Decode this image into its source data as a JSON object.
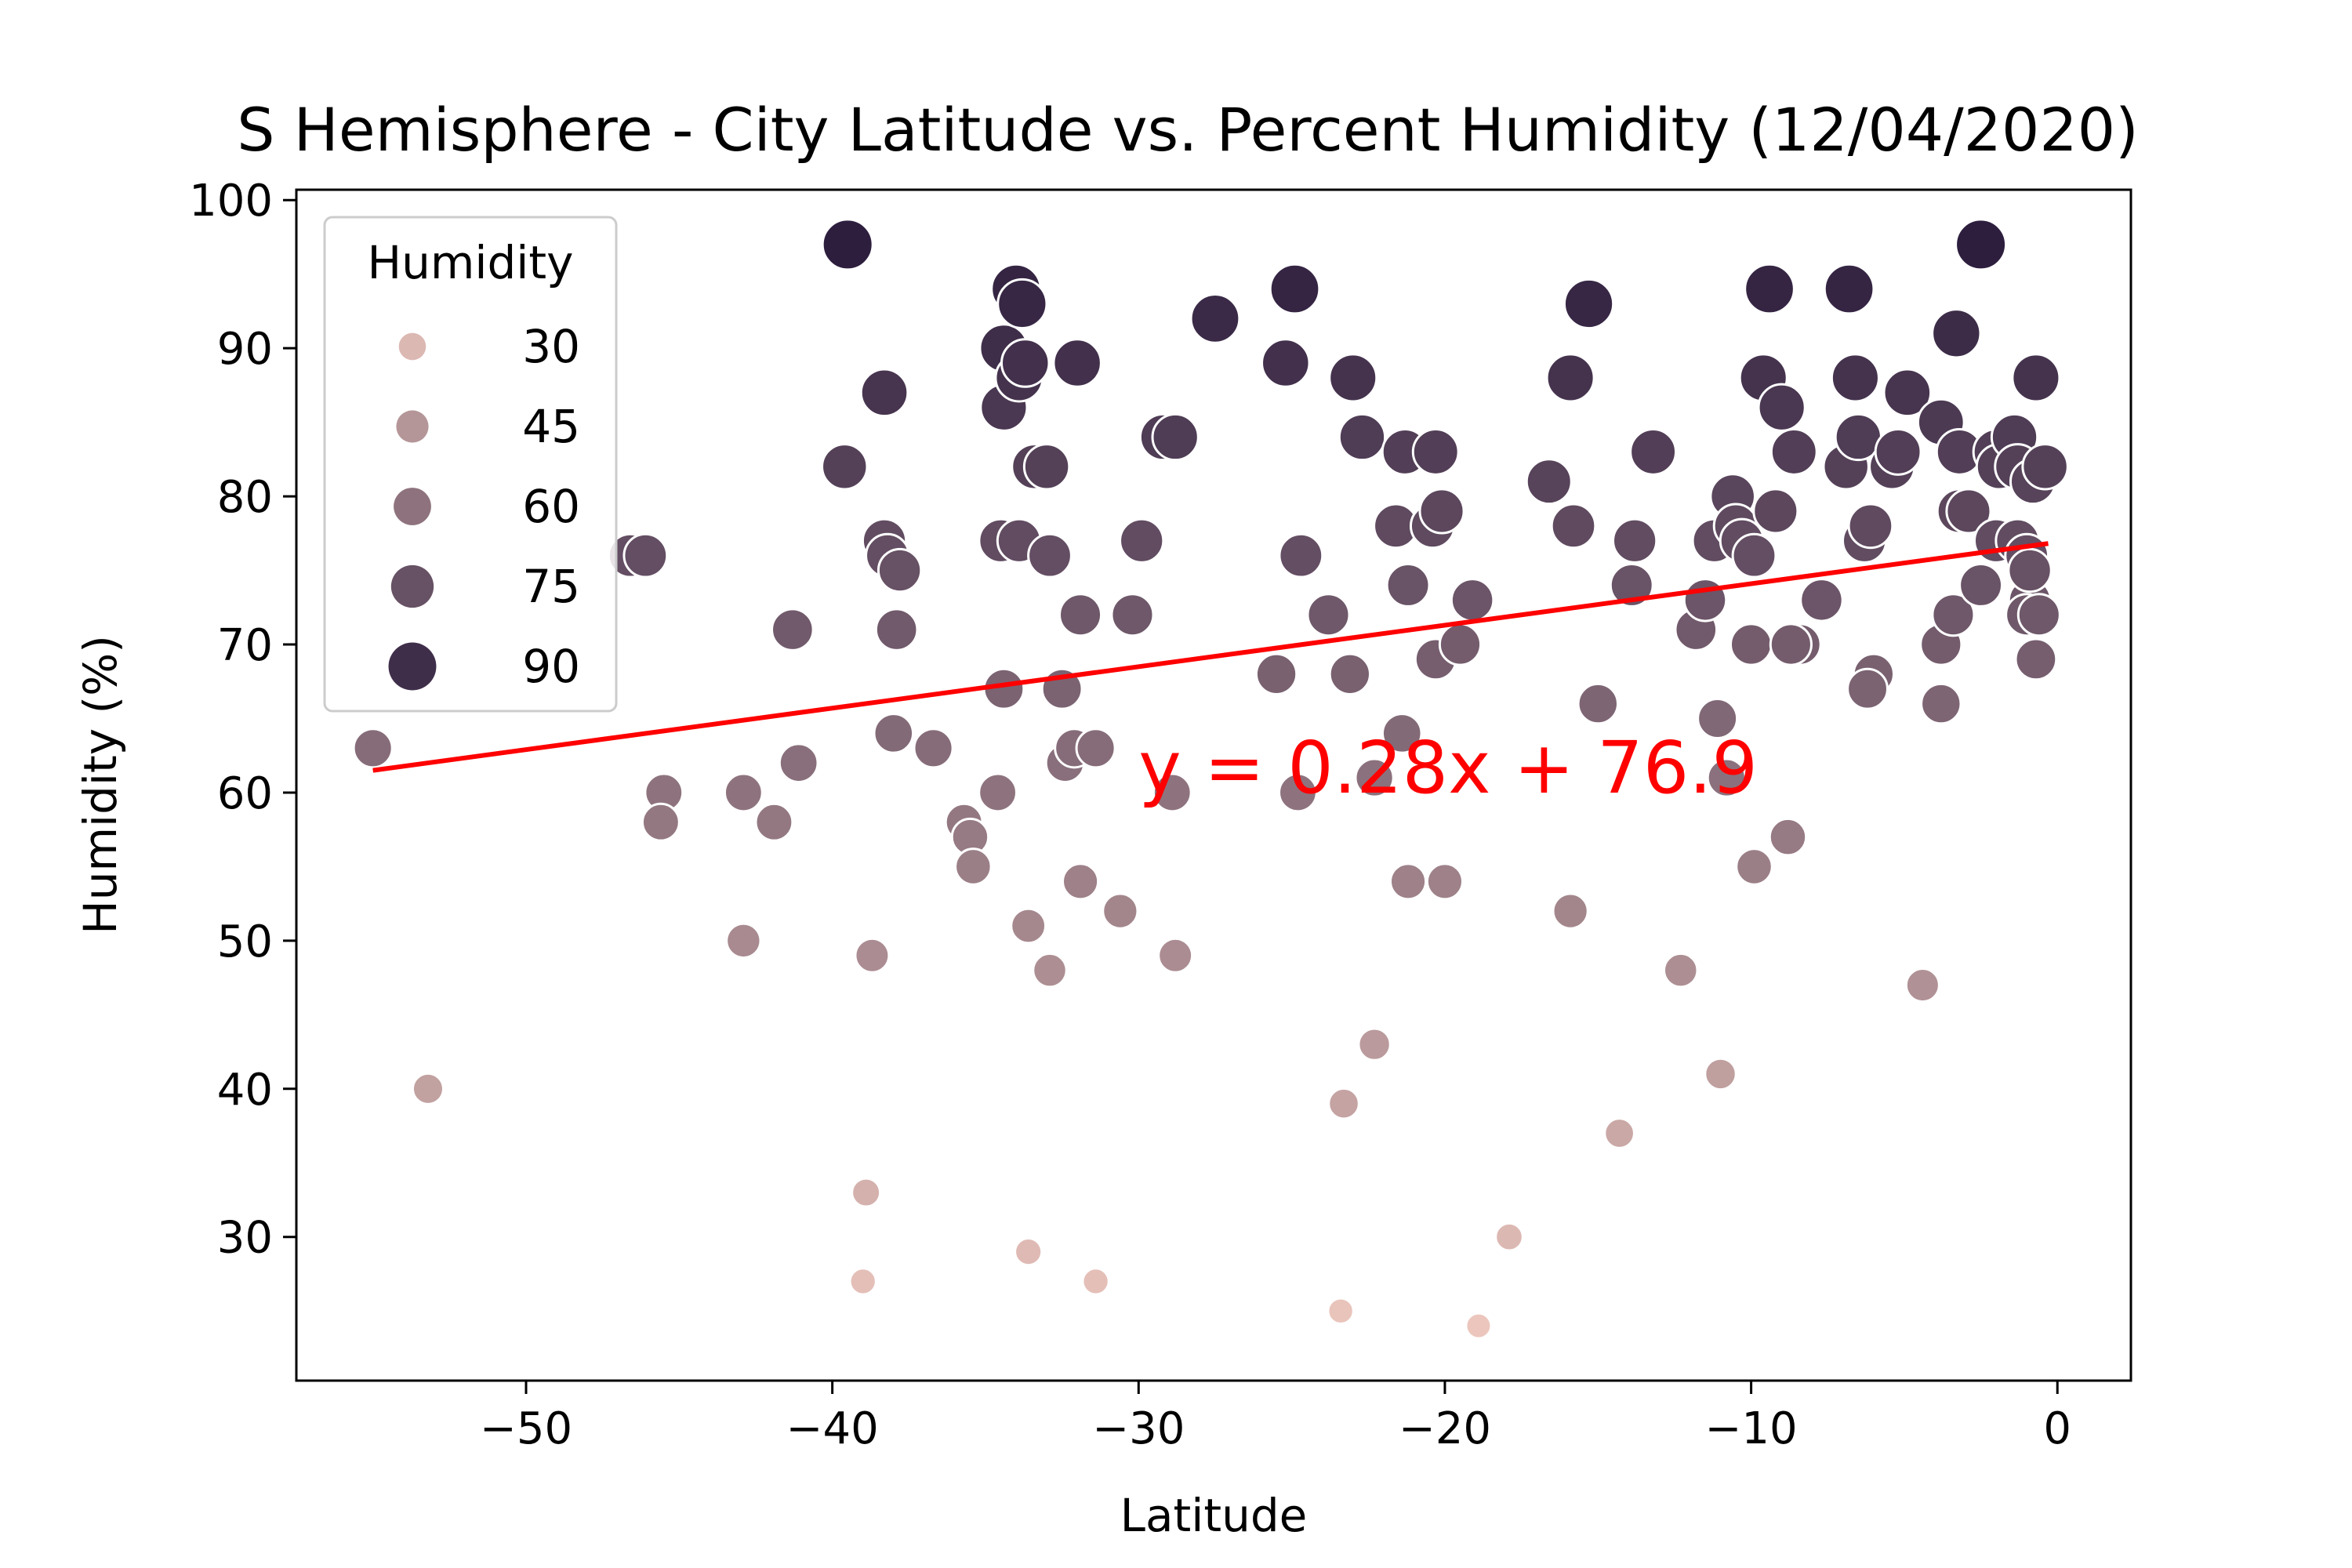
{
  "chart_data": {
    "type": "scatter",
    "title": "S Hemisphere - City Latitude vs. Percent Humidity (12/04/2020)",
    "xlabel": "Latitude",
    "ylabel": "Humidity (%)",
    "xlim": [
      -57.5,
      2.4
    ],
    "ylim": [
      20.3,
      100.7
    ],
    "xticks": [
      -50,
      -40,
      -30,
      -20,
      -10,
      0
    ],
    "yticks": [
      30,
      40,
      50,
      60,
      70,
      80,
      90,
      100
    ],
    "xtick_labels": [
      "−50",
      "−40",
      "−30",
      "−20",
      "−10",
      "0"
    ],
    "ytick_labels": [
      "30",
      "40",
      "50",
      "60",
      "70",
      "80",
      "90",
      "100"
    ],
    "grid": false,
    "hue_range": [
      24,
      97
    ],
    "color_low": "#ecc6bd",
    "color_high": "#2d1e3e",
    "legend": {
      "title": "Humidity",
      "position": "upper-left",
      "entries": [
        "30",
        "45",
        "60",
        "75",
        "90"
      ],
      "values": [
        30,
        45,
        60,
        75,
        90
      ]
    },
    "regression": {
      "slope": 0.28,
      "intercept": 76.9,
      "x_range": [
        -55,
        -0.3
      ],
      "color": "#ff0000",
      "equation": "y = 0.28x + 76.9",
      "equation_x": -30,
      "equation_y": 60
    },
    "points": [
      {
        "x": -55.0,
        "y": 63
      },
      {
        "x": -53.2,
        "y": 40
      },
      {
        "x": -46.6,
        "y": 76
      },
      {
        "x": -46.1,
        "y": 76
      },
      {
        "x": -45.5,
        "y": 60
      },
      {
        "x": -45.6,
        "y": 58
      },
      {
        "x": -42.9,
        "y": 60
      },
      {
        "x": -42.9,
        "y": 50
      },
      {
        "x": -41.9,
        "y": 58
      },
      {
        "x": -41.3,
        "y": 71
      },
      {
        "x": -41.1,
        "y": 62
      },
      {
        "x": -39.5,
        "y": 97
      },
      {
        "x": -39.6,
        "y": 82
      },
      {
        "x": -39.0,
        "y": 27
      },
      {
        "x": -38.9,
        "y": 33
      },
      {
        "x": -38.7,
        "y": 49
      },
      {
        "x": -38.3,
        "y": 87
      },
      {
        "x": -38.3,
        "y": 77
      },
      {
        "x": -38.2,
        "y": 76
      },
      {
        "x": -37.9,
        "y": 71
      },
      {
        "x": -37.8,
        "y": 75
      },
      {
        "x": -38.0,
        "y": 64
      },
      {
        "x": -36.7,
        "y": 63
      },
      {
        "x": -35.7,
        "y": 58
      },
      {
        "x": -35.5,
        "y": 57
      },
      {
        "x": -35.4,
        "y": 55
      },
      {
        "x": -34.6,
        "y": 60
      },
      {
        "x": -34.4,
        "y": 67
      },
      {
        "x": -34.5,
        "y": 77
      },
      {
        "x": -34.4,
        "y": 90
      },
      {
        "x": -34.4,
        "y": 86
      },
      {
        "x": -34.0,
        "y": 94
      },
      {
        "x": -33.8,
        "y": 93
      },
      {
        "x": -33.9,
        "y": 88
      },
      {
        "x": -33.7,
        "y": 89
      },
      {
        "x": -33.9,
        "y": 77
      },
      {
        "x": -33.6,
        "y": 29
      },
      {
        "x": -33.6,
        "y": 51
      },
      {
        "x": -33.4,
        "y": 82
      },
      {
        "x": -33.0,
        "y": 82
      },
      {
        "x": -32.9,
        "y": 76
      },
      {
        "x": -32.9,
        "y": 48
      },
      {
        "x": -32.5,
        "y": 67
      },
      {
        "x": -32.4,
        "y": 62
      },
      {
        "x": -32.1,
        "y": 63
      },
      {
        "x": -32.0,
        "y": 89
      },
      {
        "x": -31.9,
        "y": 72
      },
      {
        "x": -31.9,
        "y": 54
      },
      {
        "x": -31.4,
        "y": 63
      },
      {
        "x": -31.4,
        "y": 27
      },
      {
        "x": -30.6,
        "y": 52
      },
      {
        "x": -30.2,
        "y": 72
      },
      {
        "x": -29.9,
        "y": 77
      },
      {
        "x": -29.2,
        "y": 84
      },
      {
        "x": -28.8,
        "y": 84
      },
      {
        "x": -28.9,
        "y": 60
      },
      {
        "x": -28.8,
        "y": 49
      },
      {
        "x": -27.5,
        "y": 92
      },
      {
        "x": -25.5,
        "y": 68
      },
      {
        "x": -25.2,
        "y": 89
      },
      {
        "x": -24.9,
        "y": 94
      },
      {
        "x": -24.8,
        "y": 60
      },
      {
        "x": -24.7,
        "y": 76
      },
      {
        "x": -23.8,
        "y": 72
      },
      {
        "x": -23.4,
        "y": 25
      },
      {
        "x": -23.3,
        "y": 39
      },
      {
        "x": -23.1,
        "y": 68
      },
      {
        "x": -23.0,
        "y": 88
      },
      {
        "x": -22.7,
        "y": 84
      },
      {
        "x": -22.3,
        "y": 61
      },
      {
        "x": -22.3,
        "y": 43
      },
      {
        "x": -21.4,
        "y": 64
      },
      {
        "x": -21.3,
        "y": 83
      },
      {
        "x": -21.2,
        "y": 74
      },
      {
        "x": -21.2,
        "y": 54
      },
      {
        "x": -21.6,
        "y": 78
      },
      {
        "x": -20.4,
        "y": 78
      },
      {
        "x": -20.3,
        "y": 83
      },
      {
        "x": -20.1,
        "y": 79
      },
      {
        "x": -20.3,
        "y": 69
      },
      {
        "x": -20.0,
        "y": 54
      },
      {
        "x": -19.5,
        "y": 70
      },
      {
        "x": -19.1,
        "y": 73
      },
      {
        "x": -18.9,
        "y": 24
      },
      {
        "x": -17.9,
        "y": 30
      },
      {
        "x": -16.6,
        "y": 81
      },
      {
        "x": -15.9,
        "y": 88
      },
      {
        "x": -15.8,
        "y": 78
      },
      {
        "x": -15.9,
        "y": 52
      },
      {
        "x": -15.3,
        "y": 93
      },
      {
        "x": -15.0,
        "y": 66
      },
      {
        "x": -14.3,
        "y": 37
      },
      {
        "x": -13.9,
        "y": 74
      },
      {
        "x": -13.8,
        "y": 77
      },
      {
        "x": -13.2,
        "y": 83
      },
      {
        "x": -12.3,
        "y": 48
      },
      {
        "x": -11.8,
        "y": 71
      },
      {
        "x": -11.5,
        "y": 73
      },
      {
        "x": -11.1,
        "y": 65
      },
      {
        "x": -11.2,
        "y": 77
      },
      {
        "x": -11.0,
        "y": 41
      },
      {
        "x": -10.8,
        "y": 61
      },
      {
        "x": -10.6,
        "y": 80
      },
      {
        "x": -10.5,
        "y": 78
      },
      {
        "x": -10.3,
        "y": 77
      },
      {
        "x": -10.0,
        "y": 70
      },
      {
        "x": -9.9,
        "y": 76
      },
      {
        "x": -9.9,
        "y": 55
      },
      {
        "x": -9.6,
        "y": 88
      },
      {
        "x": -9.4,
        "y": 94
      },
      {
        "x": -9.2,
        "y": 79
      },
      {
        "x": -9.0,
        "y": 86
      },
      {
        "x": -8.8,
        "y": 57
      },
      {
        "x": -8.6,
        "y": 83
      },
      {
        "x": -8.4,
        "y": 70
      },
      {
        "x": -8.7,
        "y": 70
      },
      {
        "x": -7.7,
        "y": 73
      },
      {
        "x": -6.8,
        "y": 94
      },
      {
        "x": -6.6,
        "y": 88
      },
      {
        "x": -6.9,
        "y": 82
      },
      {
        "x": -6.5,
        "y": 84
      },
      {
        "x": -6.3,
        "y": 77
      },
      {
        "x": -6.1,
        "y": 78
      },
      {
        "x": -6.0,
        "y": 68
      },
      {
        "x": -6.2,
        "y": 67
      },
      {
        "x": -5.4,
        "y": 82
      },
      {
        "x": -5.2,
        "y": 83
      },
      {
        "x": -4.9,
        "y": 87
      },
      {
        "x": -4.4,
        "y": 47
      },
      {
        "x": -3.8,
        "y": 85
      },
      {
        "x": -3.8,
        "y": 70
      },
      {
        "x": -3.8,
        "y": 66
      },
      {
        "x": -3.4,
        "y": 72
      },
      {
        "x": -3.3,
        "y": 91
      },
      {
        "x": -3.2,
        "y": 83
      },
      {
        "x": -3.2,
        "y": 79
      },
      {
        "x": -2.9,
        "y": 79
      },
      {
        "x": -2.5,
        "y": 97
      },
      {
        "x": -2.5,
        "y": 74
      },
      {
        "x": -2.0,
        "y": 83
      },
      {
        "x": -2.0,
        "y": 77
      },
      {
        "x": -1.9,
        "y": 82
      },
      {
        "x": -1.4,
        "y": 84
      },
      {
        "x": -1.3,
        "y": 77
      },
      {
        "x": -1.3,
        "y": 82
      },
      {
        "x": -1.0,
        "y": 76
      },
      {
        "x": -0.9,
        "y": 73
      },
      {
        "x": -0.9,
        "y": 75
      },
      {
        "x": -1.0,
        "y": 72
      },
      {
        "x": -0.7,
        "y": 88
      },
      {
        "x": -0.8,
        "y": 81
      },
      {
        "x": -0.6,
        "y": 72
      },
      {
        "x": -0.7,
        "y": 69
      },
      {
        "x": -0.4,
        "y": 82
      }
    ]
  }
}
